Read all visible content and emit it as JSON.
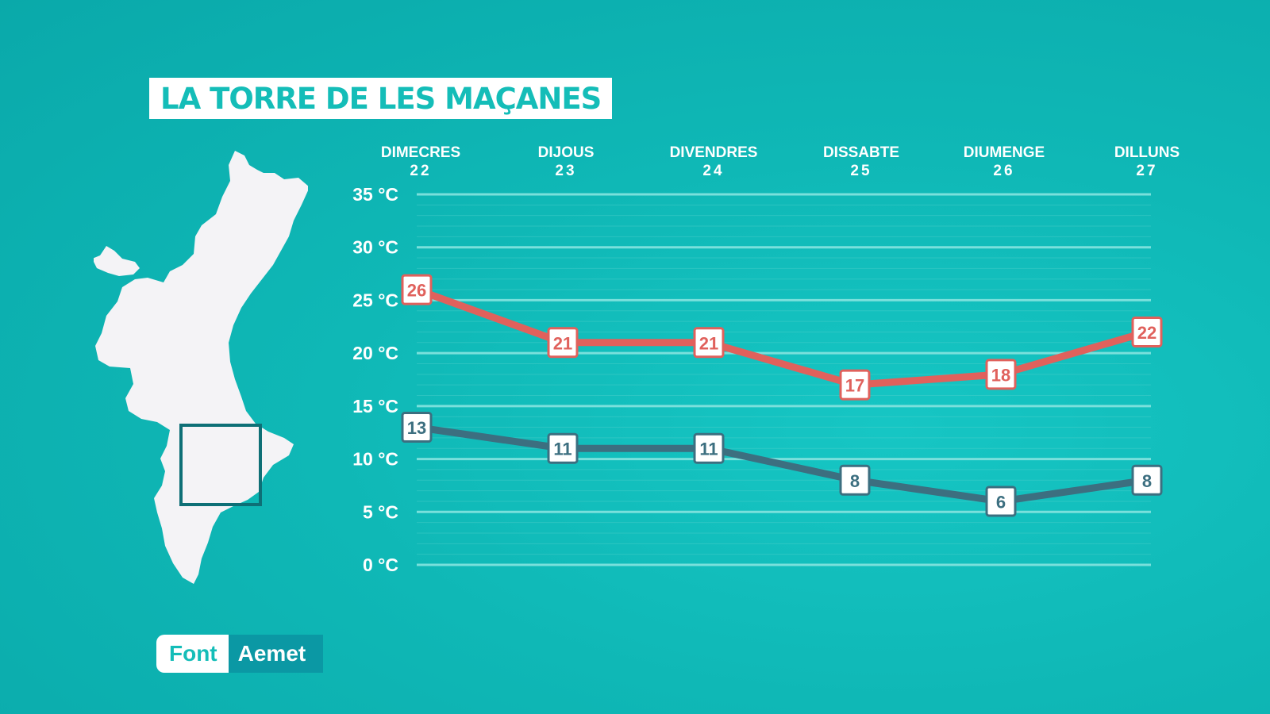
{
  "title": "LA TORRE DE LES MAÇANES",
  "source": {
    "label": "Font",
    "value": "Aemet"
  },
  "colors": {
    "max": "#e0615c",
    "min": "#3c6f80",
    "grid": "#7fe2dd"
  },
  "chart_data": {
    "type": "line",
    "categories": [
      {
        "day": "DIMECRES",
        "date": "22"
      },
      {
        "day": "DIJOUS",
        "date": "23"
      },
      {
        "day": "DIVENDRES",
        "date": "24"
      },
      {
        "day": "DISSABTE",
        "date": "25"
      },
      {
        "day": "DIUMENGE",
        "date": "26"
      },
      {
        "day": "DILLUNS",
        "date": "27"
      }
    ],
    "series": [
      {
        "values": [
          26,
          21,
          21,
          17,
          18,
          22
        ],
        "color": "#e0615c"
      },
      {
        "values": [
          13,
          11,
          11,
          8,
          6,
          8
        ],
        "color": "#3c6f80"
      }
    ],
    "y_ticks": [
      "0 °C",
      "5 °C",
      "10 °C",
      "15 °C",
      "20 °C",
      "25 °C",
      "30 °C",
      "35 °C"
    ],
    "ylim": [
      0,
      35
    ],
    "grid": true
  }
}
